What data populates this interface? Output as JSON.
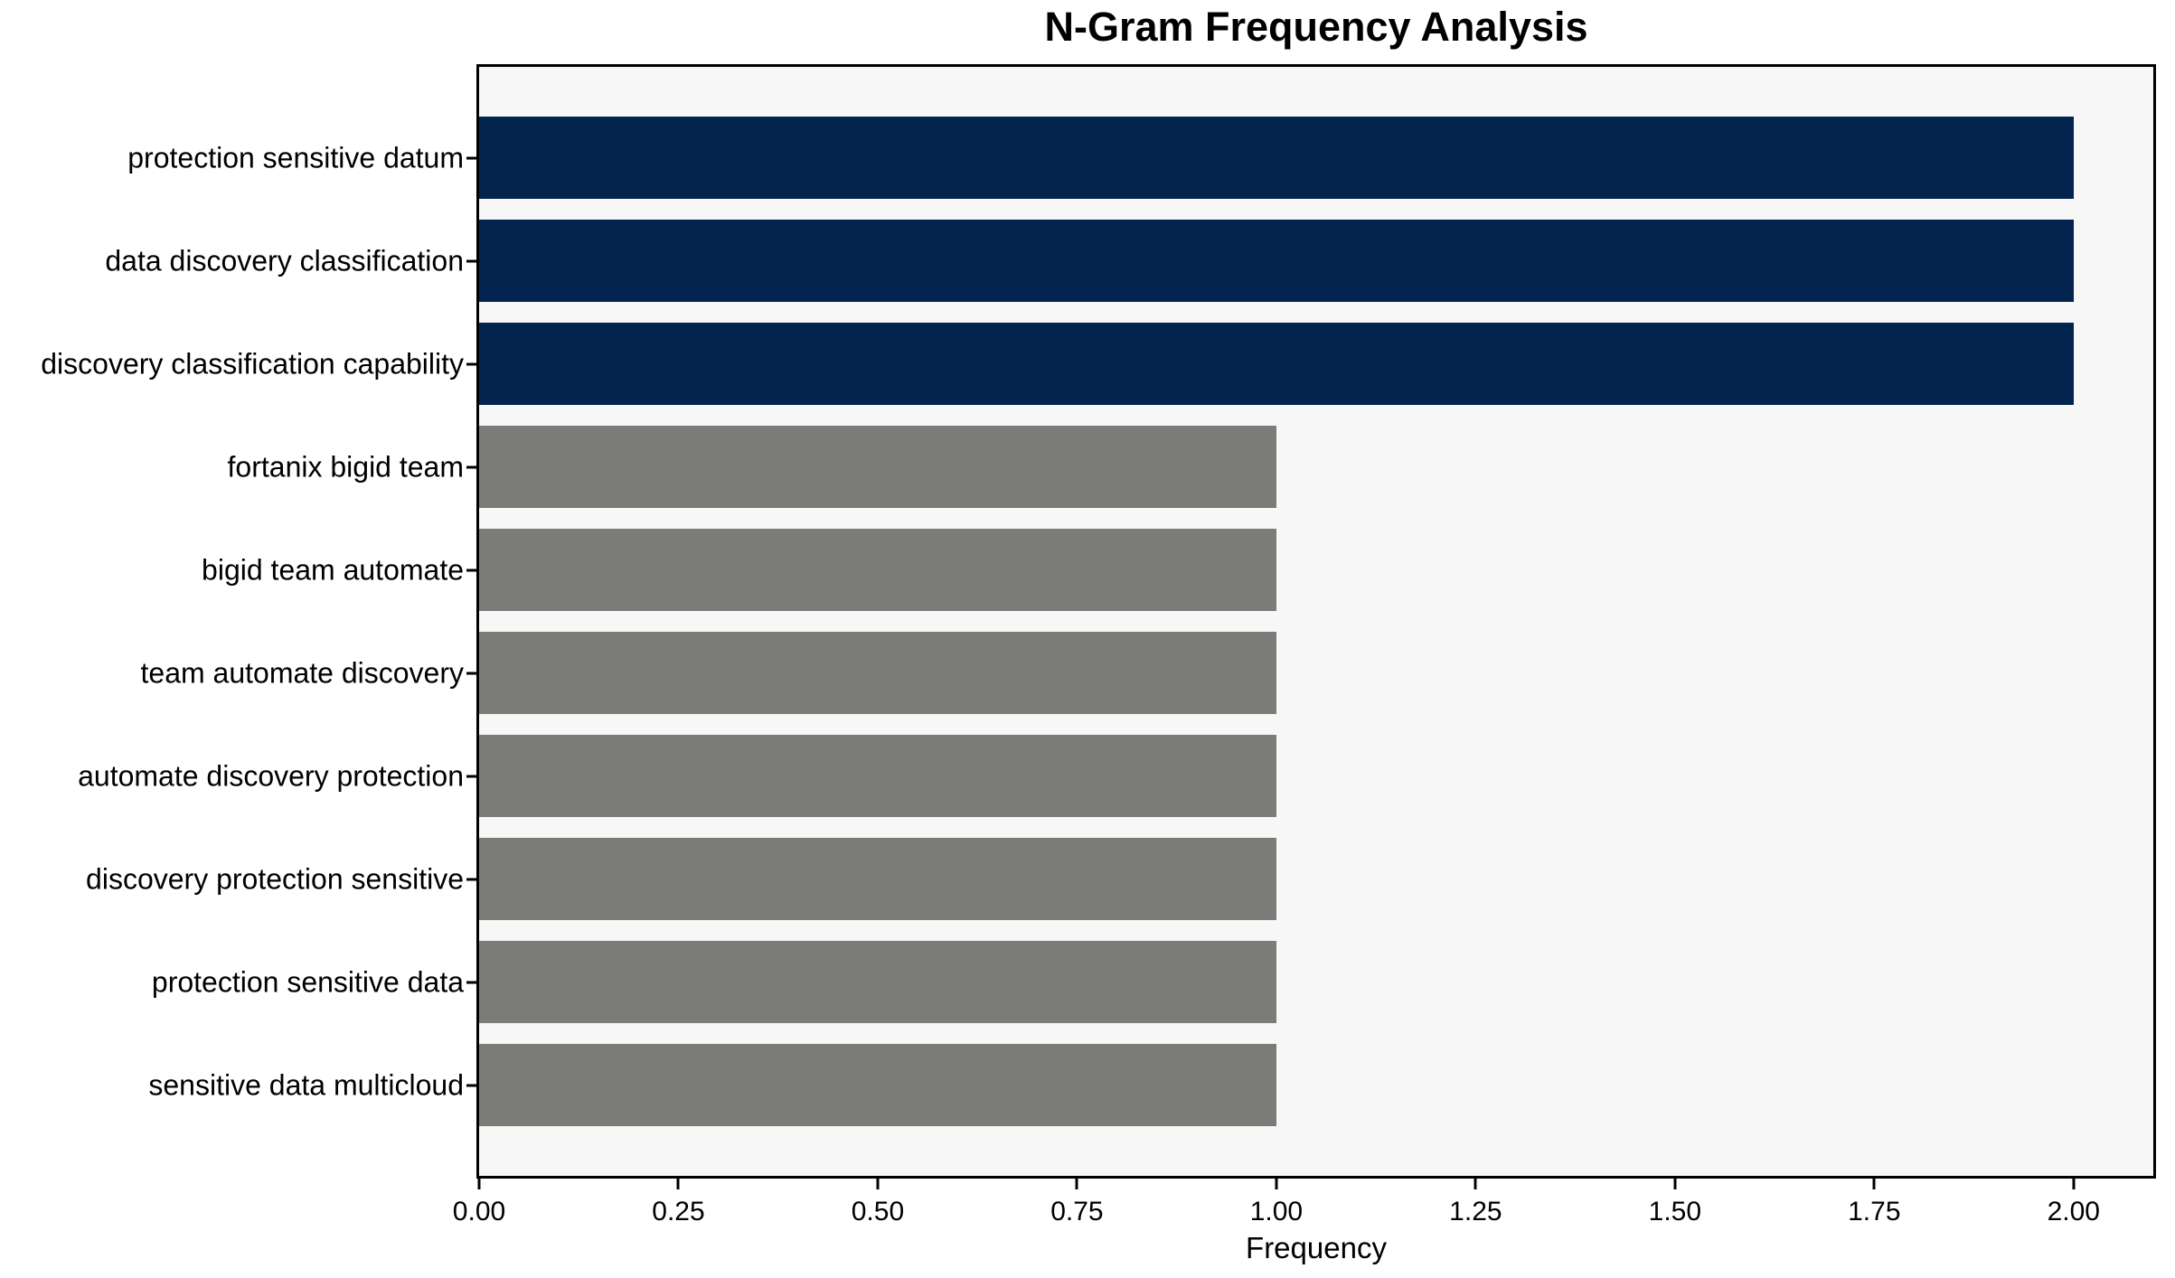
{
  "figure": {
    "title": "N-Gram Frequency Analysis"
  },
  "chart_data": {
    "type": "bar",
    "orientation": "horizontal",
    "title": "N-Gram Frequency Analysis",
    "categories": [
      "protection sensitive datum",
      "data discovery classification",
      "discovery classification capability",
      "fortanix bigid team",
      "bigid team automate",
      "team automate discovery",
      "automate discovery protection",
      "discovery protection sensitive",
      "protection sensitive data",
      "sensitive data multicloud"
    ],
    "values": [
      2,
      2,
      2,
      1,
      1,
      1,
      1,
      1,
      1,
      1
    ],
    "bar_colors": [
      "#02234d",
      "#02234d",
      "#02234d",
      "#7b7b78",
      "#7b7b78",
      "#7b7b78",
      "#7b7b78",
      "#7b7b78",
      "#7b7b78",
      "#7b7b78"
    ],
    "xlabel": "Frequency",
    "ylabel": "",
    "xlim": [
      0,
      2.1
    ],
    "x_tick_values": [
      0,
      0.25,
      0.5,
      0.75,
      1.0,
      1.25,
      1.5,
      1.75,
      2.0
    ],
    "x_tick_labels": [
      "0.00",
      "0.25",
      "0.50",
      "0.75",
      "1.00",
      "1.25",
      "1.50",
      "1.75",
      "2.00"
    ],
    "grid": false,
    "legend": false,
    "plot_background": "#f7f7f7",
    "figure_background": "#ffffff",
    "highlight_color": "#02234d",
    "default_color": "#7b7b78"
  }
}
